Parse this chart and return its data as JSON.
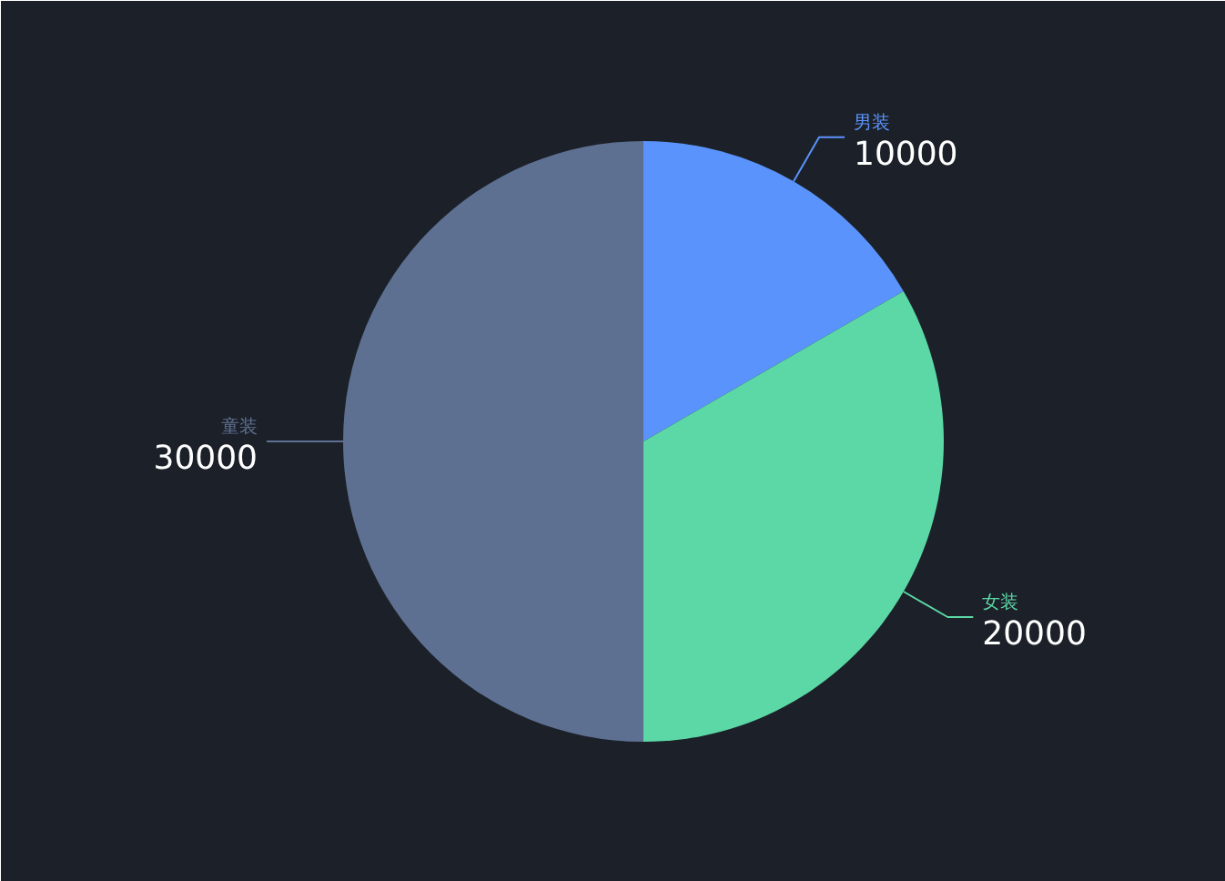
{
  "chart_data": {
    "type": "pie",
    "categories": [
      "男装",
      "女装",
      "童装"
    ],
    "values": [
      10000,
      20000,
      30000
    ],
    "colors": [
      "#5b93fc",
      "#5cd8a6",
      "#5e7092"
    ],
    "data_labels": true
  }
}
